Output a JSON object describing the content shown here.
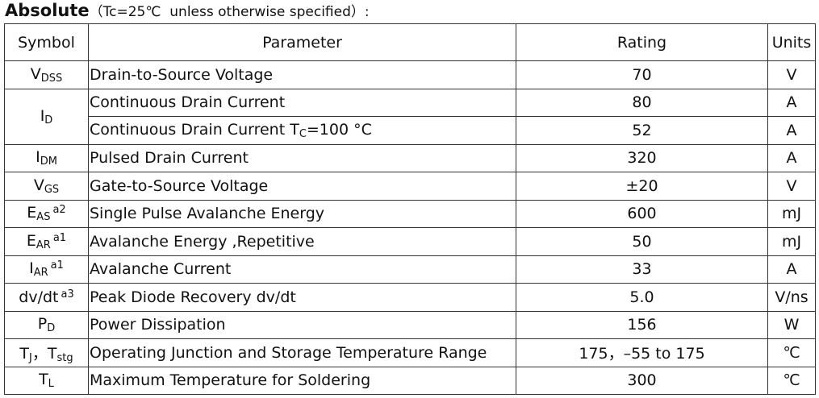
{
  "title": {
    "bold": "Absolute",
    "note": "（Tc=25℃  unless otherwise specified）:"
  },
  "table": {
    "header": [
      "Symbol",
      "Parameter",
      "Rating",
      "Units"
    ],
    "rows": [
      {
        "symbol": [
          {
            "t": "V"
          },
          {
            "sub": "DSS"
          }
        ],
        "parameter": [
          {
            "t": "Drain-to-Source Voltage"
          }
        ],
        "rating": "70",
        "units": "V"
      },
      {
        "symbol": [
          {
            "t": "I"
          },
          {
            "sub": "D"
          }
        ],
        "parameter": [
          {
            "t": "Continuous Drain Current"
          }
        ],
        "rating": "80",
        "units": "A"
      },
      {
        "parameter": [
          {
            "t": "Continuous Drain Current T"
          },
          {
            "sub": "C"
          },
          {
            "t": "=100 °C"
          }
        ],
        "rating": "52",
        "units": "A"
      },
      {
        "symbol": [
          {
            "t": "I"
          },
          {
            "sub": "DM"
          }
        ],
        "parameter": [
          {
            "t": "Pulsed Drain Current"
          }
        ],
        "rating": "320",
        "units": "A"
      },
      {
        "symbol": [
          {
            "t": "V"
          },
          {
            "sub": "GS"
          }
        ],
        "parameter": [
          {
            "t": "Gate-to-Source Voltage"
          }
        ],
        "rating": "±20",
        "units": "V"
      },
      {
        "symbol": [
          {
            "t": "E"
          },
          {
            "sub": "AS"
          },
          {
            "sup": "a2"
          }
        ],
        "parameter": [
          {
            "t": "Single Pulse Avalanche Energy"
          }
        ],
        "rating": "600",
        "units": "mJ"
      },
      {
        "symbol": [
          {
            "t": "E"
          },
          {
            "sub": "AR"
          },
          {
            "sup": "a1"
          }
        ],
        "parameter": [
          {
            "t": "Avalanche Energy ,Repetitive"
          }
        ],
        "rating": "50",
        "units": "mJ"
      },
      {
        "symbol": [
          {
            "t": "I"
          },
          {
            "sub": "AR"
          },
          {
            "sup": "a1"
          }
        ],
        "parameter": [
          {
            "t": "Avalanche Current"
          }
        ],
        "rating": "33",
        "units": "A"
      },
      {
        "symbol": [
          {
            "t": "dv/dt"
          },
          {
            "sup": "a3"
          }
        ],
        "parameter": [
          {
            "t": "Peak Diode Recovery dv/dt"
          }
        ],
        "rating": "5.0",
        "units": "V/ns"
      },
      {
        "symbol": [
          {
            "t": "P"
          },
          {
            "sub": "D"
          }
        ],
        "parameter": [
          {
            "t": "Power Dissipation"
          }
        ],
        "rating": "156",
        "units": "W"
      },
      {
        "symbol": [
          {
            "t": "T"
          },
          {
            "sub": "J"
          },
          {
            "t": "，T"
          },
          {
            "sub": "stg"
          }
        ],
        "parameter": [
          {
            "t": "Operating Junction and Storage Temperature Range"
          }
        ],
        "rating": "175，–55 to 175",
        "units": "℃"
      },
      {
        "symbol": [
          {
            "t": "T"
          },
          {
            "sub": "L"
          }
        ],
        "parameter": [
          {
            "t": "Maximum Temperature for Soldering"
          }
        ],
        "rating": "300",
        "units": "℃"
      }
    ]
  }
}
